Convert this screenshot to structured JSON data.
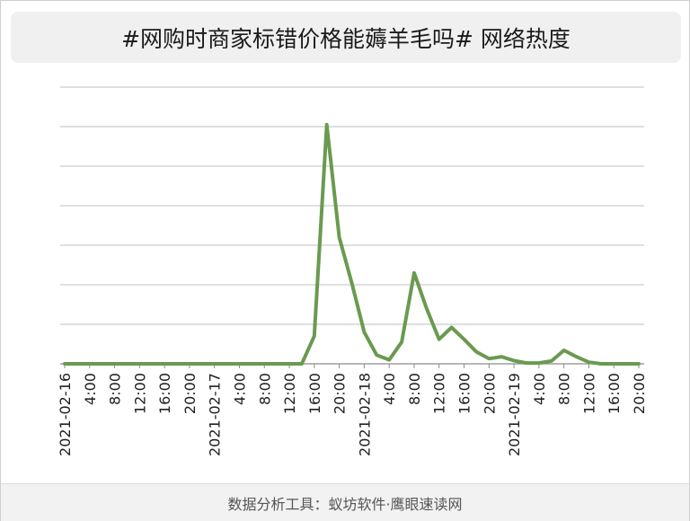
{
  "title": "#网购时商家标错价格能薅羊毛吗# 网络热度",
  "footer": "数据分析工具：蚁坊软件·鹰眼速读网",
  "colors": {
    "line": "#6a9a50",
    "grid": "#bfbfbf",
    "axis": "#8c8c8c",
    "tick_text": "#222222"
  },
  "chart_data": {
    "type": "line",
    "title": "#网购时商家标错价格能薅羊毛吗# 网络热度",
    "xlabel": "",
    "ylabel": "",
    "grid": true,
    "y_tick_labels_shown": false,
    "ylim": [
      0,
      7
    ],
    "x_interval_hours": 2,
    "x": [
      "2021-02-16",
      "2:00",
      "4:00",
      "6:00",
      "8:00",
      "10:00",
      "12:00",
      "14:00",
      "16:00",
      "18:00",
      "20:00",
      "22:00",
      "2021-02-17",
      "2:00",
      "4:00",
      "6:00",
      "8:00",
      "10:00",
      "12:00",
      "14:00",
      "16:00",
      "18:00",
      "20:00",
      "22:00",
      "2021-02-18",
      "2:00",
      "4:00",
      "6:00",
      "8:00",
      "10:00",
      "12:00",
      "14:00",
      "16:00",
      "18:00",
      "20:00",
      "22:00",
      "2021-02-19",
      "2:00",
      "4:00",
      "6:00",
      "8:00",
      "10:00",
      "12:00",
      "14:00",
      "16:00",
      "18:00",
      "20:00"
    ],
    "x_tick_labels": [
      "2021-02-16",
      "4:00",
      "8:00",
      "12:00",
      "16:00",
      "20:00",
      "2021-02-17",
      "4:00",
      "8:00",
      "12:00",
      "16:00",
      "20:00",
      "2021-02-18",
      "4:00",
      "8:00",
      "12:00",
      "16:00",
      "20:00",
      "2021-02-19",
      "4:00",
      "8:00",
      "12:00",
      "16:00",
      "20:00"
    ],
    "series": [
      {
        "values": [
          0,
          0,
          0,
          0,
          0,
          0,
          0,
          0,
          0,
          0,
          0,
          0,
          0,
          0,
          0,
          0,
          0,
          0,
          0,
          0,
          0.7,
          6.05,
          3.2,
          2.05,
          0.8,
          0.22,
          0.1,
          0.55,
          2.3,
          1.4,
          0.62,
          0.92,
          0.62,
          0.3,
          0.13,
          0.18,
          0.08,
          0.02,
          0.02,
          0.07,
          0.34,
          0.18,
          0.04,
          0,
          0,
          0,
          0
        ]
      }
    ]
  }
}
